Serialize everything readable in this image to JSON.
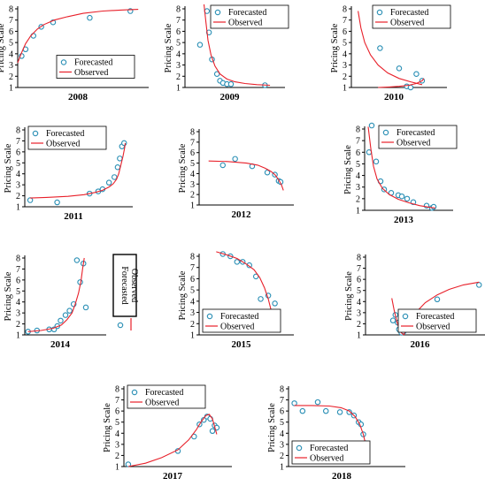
{
  "y_label": "Pricing Scale",
  "legend": {
    "forecasted": "Forecasted",
    "observed": "Observed"
  },
  "colors": {
    "forecasted": "#2a8fb5",
    "observed": "#e8202a",
    "axis": "#000000"
  },
  "chart_data": [
    {
      "type": "scatter",
      "year": "2008",
      "ylim": [
        1,
        8
      ],
      "yticks": [
        1,
        2,
        3,
        4,
        5,
        6,
        7,
        8
      ],
      "grid": false,
      "legend_position": "right-middle",
      "series": [
        {
          "name": "Forecasted",
          "kind": "points",
          "x": [
            0.03,
            0.06,
            0.12,
            0.18,
            0.27,
            0.55,
            0.86
          ],
          "y": [
            3.8,
            4.4,
            5.6,
            6.4,
            6.8,
            7.2,
            7.8
          ]
        },
        {
          "name": "Observed",
          "kind": "line",
          "x": [
            0.0,
            0.03,
            0.06,
            0.1,
            0.15,
            0.2,
            0.28,
            0.38,
            0.5,
            0.65,
            0.8,
            0.92
          ],
          "y": [
            3.2,
            4.1,
            4.9,
            5.6,
            6.2,
            6.6,
            7.0,
            7.3,
            7.6,
            7.8,
            7.9,
            7.95
          ]
        }
      ]
    },
    {
      "type": "scatter",
      "year": "2009",
      "ylim": [
        1,
        8
      ],
      "yticks": [
        1,
        2,
        3,
        4,
        5,
        6,
        7,
        8
      ],
      "grid": false,
      "legend_position": "top-right",
      "series": [
        {
          "name": "Forecasted",
          "kind": "points",
          "x": [
            0.15,
            0.22,
            0.24,
            0.27,
            0.32,
            0.35,
            0.38,
            0.42,
            0.46,
            0.8
          ],
          "y": [
            4.8,
            7.8,
            5.9,
            3.5,
            2.2,
            1.6,
            1.4,
            1.3,
            1.3,
            1.2
          ]
        },
        {
          "name": "Observed",
          "kind": "line",
          "x": [
            0.19,
            0.21,
            0.23,
            0.26,
            0.3,
            0.35,
            0.42,
            0.5,
            0.6,
            0.72,
            0.85
          ],
          "y": [
            8.4,
            6.8,
            5.2,
            3.9,
            2.9,
            2.2,
            1.75,
            1.5,
            1.35,
            1.25,
            1.2
          ]
        }
      ]
    },
    {
      "type": "scatter",
      "year": "2010",
      "ylim": [
        1,
        8
      ],
      "yticks": [
        1,
        2,
        3,
        4,
        5,
        6,
        7,
        8
      ],
      "grid": false,
      "legend_position": "top-right",
      "series": [
        {
          "name": "Forecasted",
          "kind": "points",
          "x": [
            0.3,
            0.5,
            0.58,
            0.62,
            0.68,
            0.74
          ],
          "y": [
            4.5,
            2.7,
            1.1,
            1.0,
            2.2,
            1.6
          ]
        },
        {
          "name": "Observed",
          "kind": "line",
          "x": [
            0.07,
            0.1,
            0.14,
            0.2,
            0.28,
            0.38,
            0.5,
            0.62,
            0.74
          ],
          "y": [
            7.8,
            6.3,
            5.0,
            3.9,
            3.0,
            2.3,
            1.8,
            1.5,
            1.25
          ]
        },
        {
          "name": "Observed",
          "kind": "line",
          "x": [
            0.28,
            0.4,
            0.5,
            0.6,
            0.68,
            0.74,
            0.76
          ],
          "y": [
            1.0,
            1.05,
            1.1,
            1.2,
            1.35,
            1.6,
            1.8
          ]
        }
      ]
    },
    {
      "type": "scatter",
      "year": "2011",
      "ylim": [
        1,
        8
      ],
      "yticks": [
        1,
        2,
        3,
        4,
        5,
        6,
        7,
        8
      ],
      "grid": false,
      "legend_position": "top-left",
      "series": [
        {
          "name": "Forecasted",
          "kind": "points",
          "x": [
            0.05,
            0.3,
            0.6,
            0.68,
            0.72,
            0.78,
            0.83,
            0.86,
            0.88,
            0.9,
            0.92
          ],
          "y": [
            1.6,
            1.4,
            2.2,
            2.4,
            2.6,
            3.2,
            3.7,
            4.6,
            5.4,
            6.5,
            6.8
          ]
        },
        {
          "name": "Observed",
          "kind": "line",
          "x": [
            0.05,
            0.2,
            0.4,
            0.55,
            0.65,
            0.72,
            0.78,
            0.82,
            0.85,
            0.87,
            0.89,
            0.91,
            0.925,
            0.93
          ],
          "y": [
            1.8,
            1.85,
            1.95,
            2.1,
            2.3,
            2.5,
            2.8,
            3.1,
            3.5,
            4.0,
            4.8,
            5.6,
            6.4,
            6.8
          ]
        }
      ]
    },
    {
      "type": "scatter",
      "year": "2012",
      "ylim": [
        1,
        8
      ],
      "yticks": [
        1,
        2,
        3,
        4,
        5,
        6,
        7,
        8
      ],
      "grid": false,
      "legend_position": "none",
      "series": [
        {
          "name": "Forecasted",
          "kind": "points",
          "x": [
            0.25,
            0.38,
            0.56,
            0.72,
            0.8,
            0.84,
            0.86
          ],
          "y": [
            4.8,
            5.4,
            4.7,
            4.1,
            3.9,
            3.3,
            3.2
          ]
        },
        {
          "name": "Observed",
          "kind": "line",
          "x": [
            0.1,
            0.3,
            0.5,
            0.62,
            0.7,
            0.76,
            0.8,
            0.84,
            0.87,
            0.89
          ],
          "y": [
            5.2,
            5.15,
            5.0,
            4.8,
            4.5,
            4.2,
            3.9,
            3.4,
            2.9,
            2.4
          ]
        }
      ]
    },
    {
      "type": "scatter",
      "year": "2013",
      "ylim": [
        1,
        8
      ],
      "yticks": [
        1,
        2,
        3,
        4,
        5,
        6,
        7,
        8
      ],
      "grid": false,
      "legend_position": "top-right",
      "series": [
        {
          "name": "Forecasted",
          "kind": "points",
          "x": [
            0.05,
            0.08,
            0.13,
            0.18,
            0.22,
            0.3,
            0.38,
            0.42,
            0.48,
            0.55,
            0.7,
            0.76,
            0.78
          ],
          "y": [
            6.0,
            8.3,
            5.2,
            3.5,
            2.8,
            2.5,
            2.3,
            2.2,
            2.0,
            1.7,
            1.4,
            1.2,
            1.3
          ]
        },
        {
          "name": "Observed",
          "kind": "line",
          "x": [
            0.04,
            0.07,
            0.1,
            0.14,
            0.2,
            0.28,
            0.38,
            0.5,
            0.62,
            0.74,
            0.8
          ],
          "y": [
            8.2,
            6.3,
            4.8,
            3.7,
            2.9,
            2.35,
            1.95,
            1.65,
            1.4,
            1.25,
            1.2
          ]
        }
      ]
    },
    {
      "type": "scatter",
      "year": "2014",
      "ylim": [
        1,
        8
      ],
      "yticks": [
        1,
        2,
        3,
        4,
        5,
        6,
        7,
        8
      ],
      "grid": false,
      "legend_position": "right-vertical",
      "series": [
        {
          "name": "Forecasted",
          "kind": "points",
          "x": [
            0.04,
            0.15,
            0.3,
            0.36,
            0.4,
            0.44,
            0.5,
            0.55,
            0.6,
            0.64,
            0.68,
            0.72,
            0.75
          ],
          "y": [
            1.3,
            1.4,
            1.5,
            1.5,
            1.8,
            2.3,
            2.8,
            3.2,
            3.8,
            7.8,
            5.8,
            7.5,
            3.5
          ]
        },
        {
          "name": "Observed",
          "kind": "line",
          "x": [
            0.04,
            0.2,
            0.35,
            0.45,
            0.52,
            0.58,
            0.62,
            0.66,
            0.69,
            0.71,
            0.73
          ],
          "y": [
            1.3,
            1.4,
            1.6,
            1.9,
            2.4,
            3.0,
            3.8,
            4.8,
            5.9,
            7.0,
            8.0
          ]
        }
      ]
    },
    {
      "type": "scatter",
      "year": "2015",
      "ylim": [
        1,
        8
      ],
      "yticks": [
        1,
        2,
        3,
        4,
        5,
        6,
        7,
        8
      ],
      "grid": false,
      "legend_position": "bottom-left",
      "series": [
        {
          "name": "Forecasted",
          "kind": "points",
          "x": [
            0.25,
            0.33,
            0.4,
            0.46,
            0.53,
            0.6,
            0.65,
            0.73,
            0.8
          ],
          "y": [
            8.2,
            8.0,
            7.5,
            7.5,
            7.2,
            6.2,
            4.2,
            4.5,
            3.8
          ]
        },
        {
          "name": "Observed",
          "kind": "line",
          "x": [
            0.18,
            0.3,
            0.4,
            0.5,
            0.58,
            0.64,
            0.69,
            0.73,
            0.76,
            0.78,
            0.79
          ],
          "y": [
            8.4,
            8.1,
            7.8,
            7.3,
            6.8,
            6.1,
            5.2,
            4.2,
            3.2,
            2.2,
            1.3
          ]
        }
      ]
    },
    {
      "type": "scatter",
      "year": "2016",
      "ylim": [
        1,
        8
      ],
      "yticks": [
        1,
        2,
        3,
        4,
        5,
        6,
        7,
        8
      ],
      "grid": false,
      "legend_position": "bottom-right",
      "series": [
        {
          "name": "Forecasted",
          "kind": "points",
          "x": [
            0.23,
            0.25,
            0.27,
            0.28,
            0.3,
            0.32,
            0.37,
            0.42,
            0.6,
            0.95
          ],
          "y": [
            2.3,
            2.8,
            2.1,
            1.5,
            1.2,
            1.3,
            1.6,
            3.0,
            4.2,
            5.5
          ]
        },
        {
          "name": "Observed",
          "kind": "line",
          "x": [
            0.22,
            0.24,
            0.26,
            0.28,
            0.3,
            0.32
          ],
          "y": [
            4.3,
            3.2,
            2.3,
            1.6,
            1.2,
            1.0
          ]
        },
        {
          "name": "Observed",
          "kind": "line",
          "x": [
            0.32,
            0.36,
            0.42,
            0.5,
            0.6,
            0.7,
            0.82,
            0.95
          ],
          "y": [
            1.0,
            2.0,
            3.0,
            3.9,
            4.6,
            5.1,
            5.5,
            5.75
          ]
        }
      ]
    },
    {
      "type": "scatter",
      "year": "2017",
      "ylim": [
        1,
        8
      ],
      "yticks": [
        1,
        2,
        3,
        4,
        5,
        6,
        7,
        8
      ],
      "grid": false,
      "legend_position": "top-left",
      "series": [
        {
          "name": "Forecasted",
          "kind": "points",
          "x": [
            0.04,
            0.5,
            0.65,
            0.7,
            0.74,
            0.77,
            0.8,
            0.82,
            0.84,
            0.86
          ],
          "y": [
            1.2,
            2.4,
            3.7,
            4.8,
            5.2,
            5.5,
            5.3,
            4.2,
            4.7,
            4.5
          ]
        },
        {
          "name": "Observed",
          "kind": "line",
          "x": [
            0.04,
            0.2,
            0.35,
            0.5,
            0.6,
            0.67,
            0.72,
            0.76,
            0.79,
            0.82,
            0.84,
            0.86
          ],
          "y": [
            1.0,
            1.3,
            1.8,
            2.5,
            3.4,
            4.3,
            5.1,
            5.6,
            5.7,
            5.3,
            4.6,
            3.9
          ]
        }
      ]
    },
    {
      "type": "scatter",
      "year": "2018",
      "ylim": [
        1,
        8
      ],
      "yticks": [
        1,
        2,
        3,
        4,
        5,
        6,
        7,
        8
      ],
      "grid": false,
      "legend_position": "bottom-left",
      "series": [
        {
          "name": "Forecasted",
          "kind": "points",
          "x": [
            0.05,
            0.12,
            0.25,
            0.32,
            0.44,
            0.52,
            0.56,
            0.6,
            0.62,
            0.64,
            0.66,
            0.67
          ],
          "y": [
            6.7,
            6.0,
            6.8,
            6.0,
            5.9,
            5.9,
            5.6,
            5.0,
            4.8,
            3.9,
            3.1,
            2.8
          ]
        },
        {
          "name": "Observed",
          "kind": "line",
          "x": [
            0.05,
            0.2,
            0.35,
            0.45,
            0.52,
            0.57,
            0.61,
            0.64,
            0.66,
            0.67
          ],
          "y": [
            6.5,
            6.5,
            6.45,
            6.3,
            6.0,
            5.5,
            4.8,
            3.9,
            3.0,
            2.4
          ]
        }
      ]
    }
  ]
}
